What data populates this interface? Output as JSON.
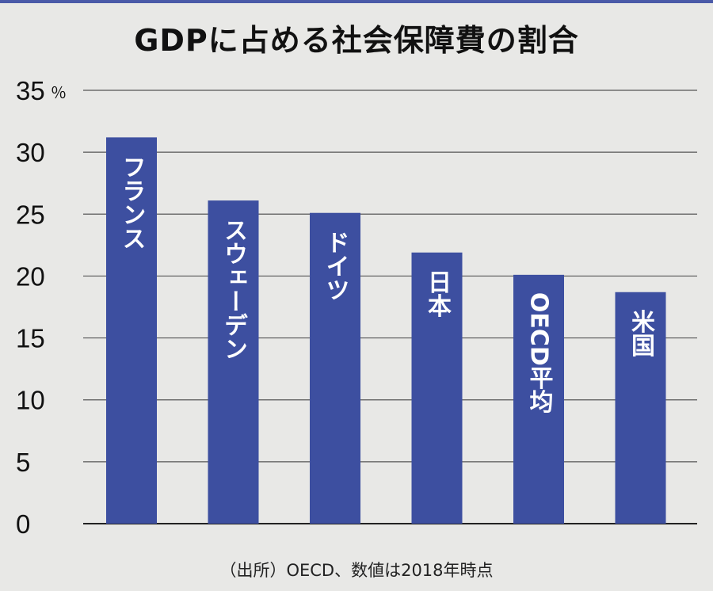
{
  "chart_data": {
    "type": "bar",
    "title": "GDPに占める社会保障費の割合",
    "unit": "％",
    "categories": [
      "フランス",
      "スウェーデン",
      "ドイツ",
      "日本",
      "OECD平均",
      "米国"
    ],
    "values": [
      31.2,
      26.1,
      25.1,
      21.9,
      20.1,
      18.7
    ],
    "ylim": [
      0,
      35
    ],
    "yticks": [
      "0",
      "5",
      "10",
      "15",
      "20",
      "25",
      "30",
      "35"
    ],
    "grid": true,
    "bar_color": "#3d4fa0",
    "note": "（出所）OECD、数値は2018年時点"
  }
}
